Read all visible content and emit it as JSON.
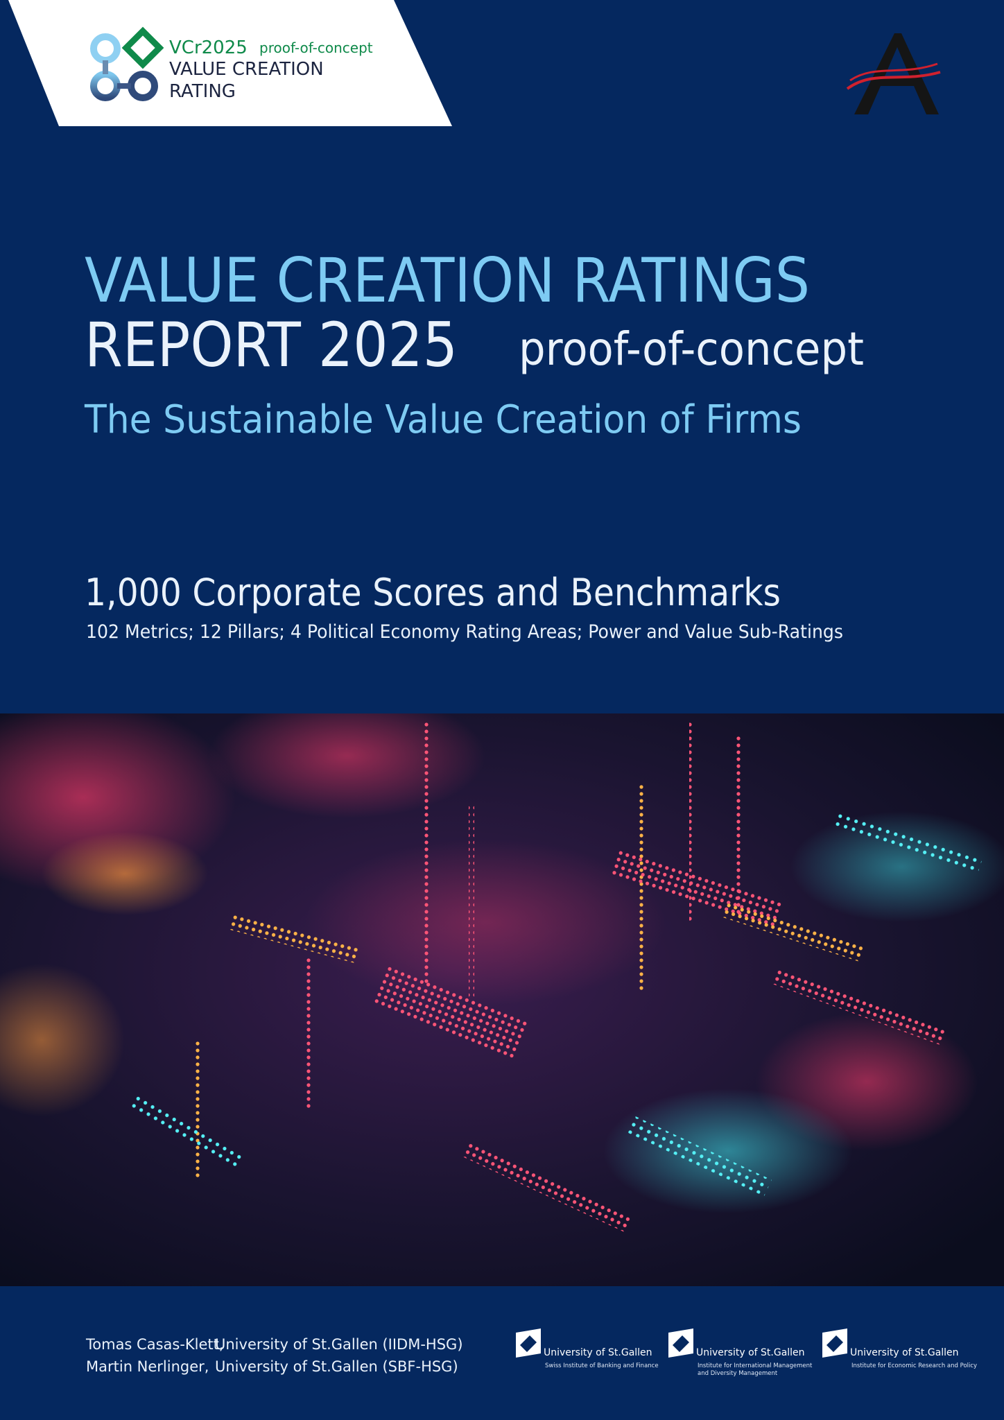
{
  "logo": {
    "code": "VCr2025",
    "tag": "proof-of-concept",
    "line1": "VALUE CREATION",
    "line2": "RATING"
  },
  "title": {
    "line1": "VALUE CREATION RATINGS",
    "line2": "REPORT 2025",
    "badge": "proof-of-concept",
    "subtitle": "The Sustainable Value Creation of Firms"
  },
  "summary": {
    "headline": "1,000 Corporate Scores and Benchmarks",
    "details": "102 Metrics; 12 Pillars; 4 Political Economy Rating Areas; Power and Value Sub-Ratings"
  },
  "authors": [
    {
      "name": "Tomas Casas-Klett,",
      "affiliation": "University of St.Gallen (IIDM-HSG)"
    },
    {
      "name": "Martin Nerlinger,",
      "affiliation": "University of St.Gallen (SBF-HSG)"
    }
  ],
  "institutions": [
    {
      "name": "University of St.Gallen",
      "unit": [
        "Swiss Institute of Banking and Finance"
      ]
    },
    {
      "name": "University of St.Gallen",
      "unit": [
        "Institute for International Management",
        "and Diversity Management"
      ]
    },
    {
      "name": "University of St.Gallen",
      "unit": [
        "Institute for Economic Research and Policy"
      ]
    }
  ]
}
